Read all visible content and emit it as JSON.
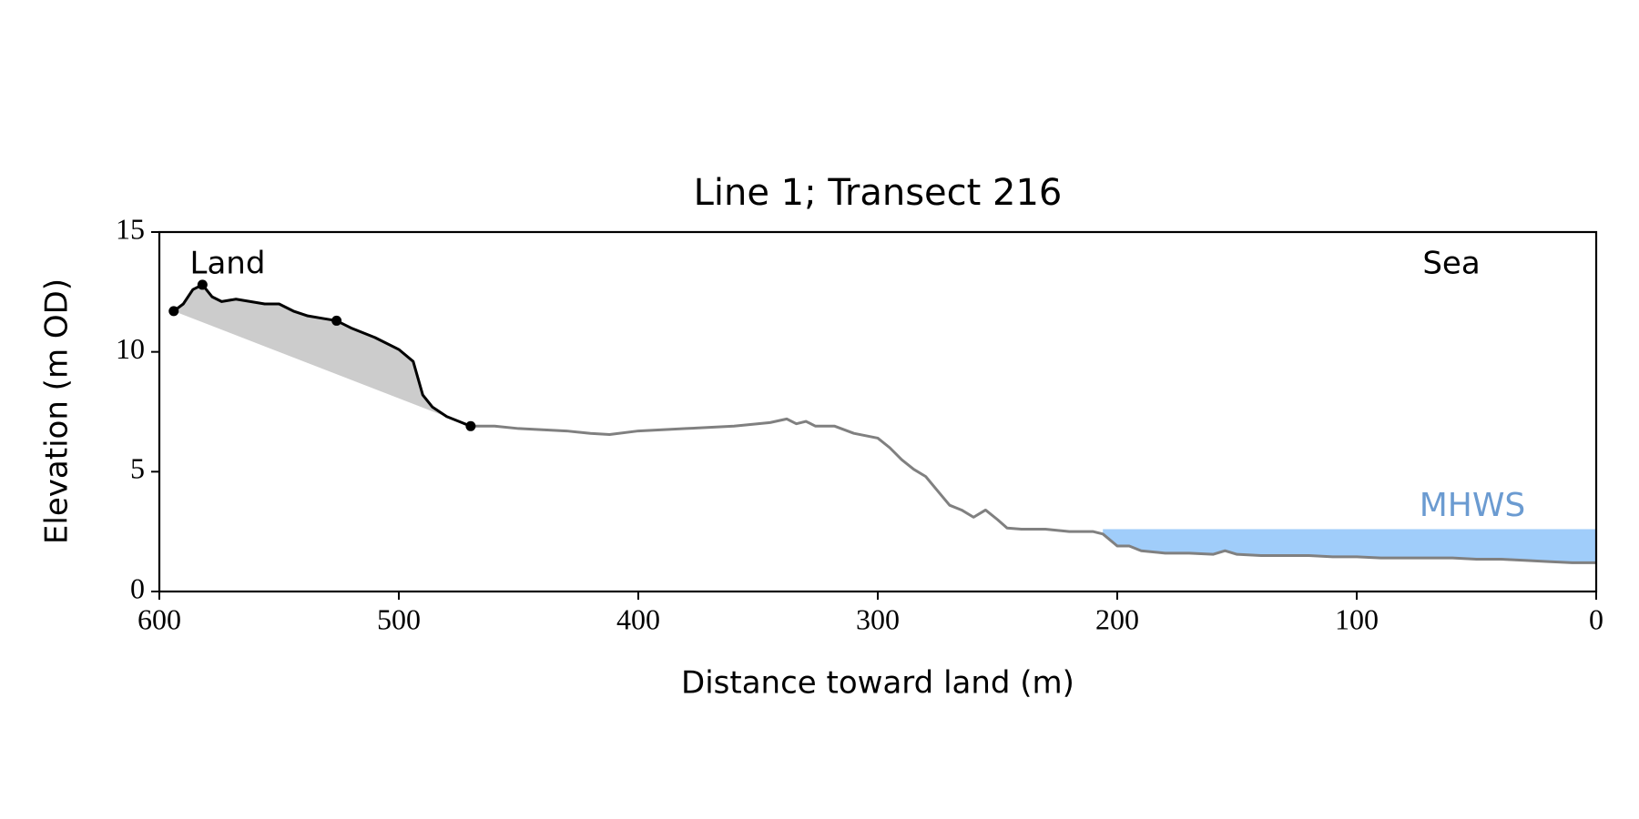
{
  "chart_data": {
    "type": "line",
    "title": "Line 1; Transect 216",
    "xlabel": "Distance toward land (m)",
    "ylabel": "Elevation (m OD)",
    "xlim": [
      600,
      0
    ],
    "ylim": [
      0,
      15
    ],
    "xticks": [
      600,
      500,
      400,
      300,
      200,
      100,
      0
    ],
    "yticks": [
      0,
      5,
      10,
      15
    ],
    "grid": false,
    "annotations": [
      "Land",
      "Sea"
    ],
    "series": [
      {
        "color": "#000000",
        "x": [
          594,
          590,
          586,
          582,
          578,
          574,
          568,
          562,
          556,
          550,
          544,
          538,
          532,
          526,
          520,
          510,
          500,
          494,
          490,
          486,
          480,
          475,
          470
        ],
        "values": [
          11.7,
          12.0,
          12.6,
          12.8,
          12.3,
          12.1,
          12.2,
          12.1,
          12.0,
          12.0,
          11.7,
          11.5,
          11.4,
          11.3,
          11.0,
          10.6,
          10.1,
          9.6,
          8.2,
          7.7,
          7.3,
          7.1,
          6.9
        ]
      },
      {
        "color": "#808080",
        "x": [
          470,
          460,
          450,
          440,
          430,
          420,
          412,
          400,
          380,
          360,
          345,
          338,
          334,
          330,
          326,
          318,
          310,
          300,
          295,
          290,
          285,
          280,
          275,
          270,
          265,
          260,
          255,
          250,
          246,
          240,
          230,
          220,
          210,
          206,
          200,
          195,
          190,
          180,
          170,
          160,
          155,
          150,
          140,
          130,
          120,
          110,
          100,
          90,
          80,
          70,
          60,
          50,
          40,
          30,
          20,
          10,
          0
        ],
        "values": [
          6.9,
          6.9,
          6.8,
          6.75,
          6.7,
          6.6,
          6.55,
          6.7,
          6.8,
          6.9,
          7.05,
          7.2,
          7.0,
          7.1,
          6.9,
          6.9,
          6.6,
          6.4,
          6.0,
          5.5,
          5.1,
          4.8,
          4.2,
          3.6,
          3.4,
          3.1,
          3.4,
          3.0,
          2.65,
          2.6,
          2.6,
          2.5,
          2.5,
          2.4,
          1.9,
          1.9,
          1.7,
          1.6,
          1.6,
          1.55,
          1.7,
          1.55,
          1.5,
          1.5,
          1.5,
          1.45,
          1.45,
          1.4,
          1.4,
          1.4,
          1.4,
          1.35,
          1.35,
          1.3,
          1.25,
          1.2,
          1.2
        ]
      }
    ],
    "points": {
      "color": "#000000",
      "x": [
        594,
        582,
        526,
        470
      ],
      "values": [
        11.7,
        12.8,
        11.3,
        6.9
      ]
    },
    "fill_color": "#cccccc",
    "mhws": {
      "label": "MHWS",
      "value": 2.6,
      "x_start": 206,
      "color": "#a0cdfa",
      "label_color": "#6b9bd1"
    }
  }
}
